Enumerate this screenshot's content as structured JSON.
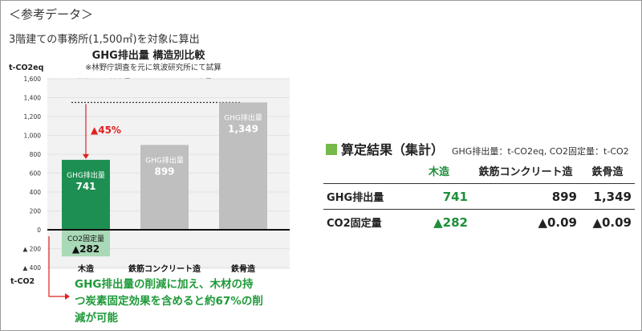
{
  "header": "＜参考データ＞",
  "subtitle": "3階建ての事務所(1,500㎡)を対象に算出",
  "chart_data": {
    "type": "bar",
    "title": "GHG排出量 構造別比較",
    "note1": "※林野庁調査を元に筑波研究所にて試算",
    "note2": "(単位 GHG排出量：t-CO2eq／CO2固定量：t-CO2)",
    "ylabel_top": "t-CO2eq",
    "ylabel_bottom": "t-CO2",
    "ylim": [
      -400,
      1600
    ],
    "yticks": [
      -400,
      -200,
      0,
      200,
      400,
      600,
      800,
      1000,
      1200,
      1400,
      1600
    ],
    "ytick_labels": [
      "▲ 400",
      "▲ 200",
      "0",
      "200",
      "400",
      "600",
      "800",
      "1,000",
      "1,200",
      "1,400",
      "1,600"
    ],
    "categories": [
      "木造",
      "鉄筋コンクリート造",
      "鉄骨造"
    ],
    "series": [
      {
        "name": "GHG排出量",
        "values": [
          741,
          899,
          1349
        ],
        "value_labels": [
          "741",
          "899",
          "1,349"
        ],
        "colors": [
          "#1e8f52",
          "#bfbfbf",
          "#bfbfbf"
        ]
      },
      {
        "name": "CO2固定量",
        "values": [
          -282,
          0,
          0
        ],
        "value_labels": [
          "▲282",
          "",
          ""
        ],
        "colors": [
          "#a9d9b7",
          "",
          ""
        ]
      }
    ],
    "reference_line": 1349,
    "annotation_percent": "▲45%",
    "callout": "GHG排出量の削減に加え、木材の持つ炭素固定効果を含めると約67%の削減が可能"
  },
  "table": {
    "title": "算定結果（集計）",
    "unit": "GHG排出量：t-CO2eq, CO2固定量：t-CO2",
    "columns": [
      "",
      "木造",
      "鉄筋コンクリート造",
      "鉄骨造"
    ],
    "rows": [
      {
        "label": "GHG排出量",
        "values": [
          "741",
          "899",
          "1,349"
        ]
      },
      {
        "label": "CO2固定量",
        "values": [
          "▲282",
          "▲0.09",
          "▲0.09"
        ]
      }
    ]
  }
}
